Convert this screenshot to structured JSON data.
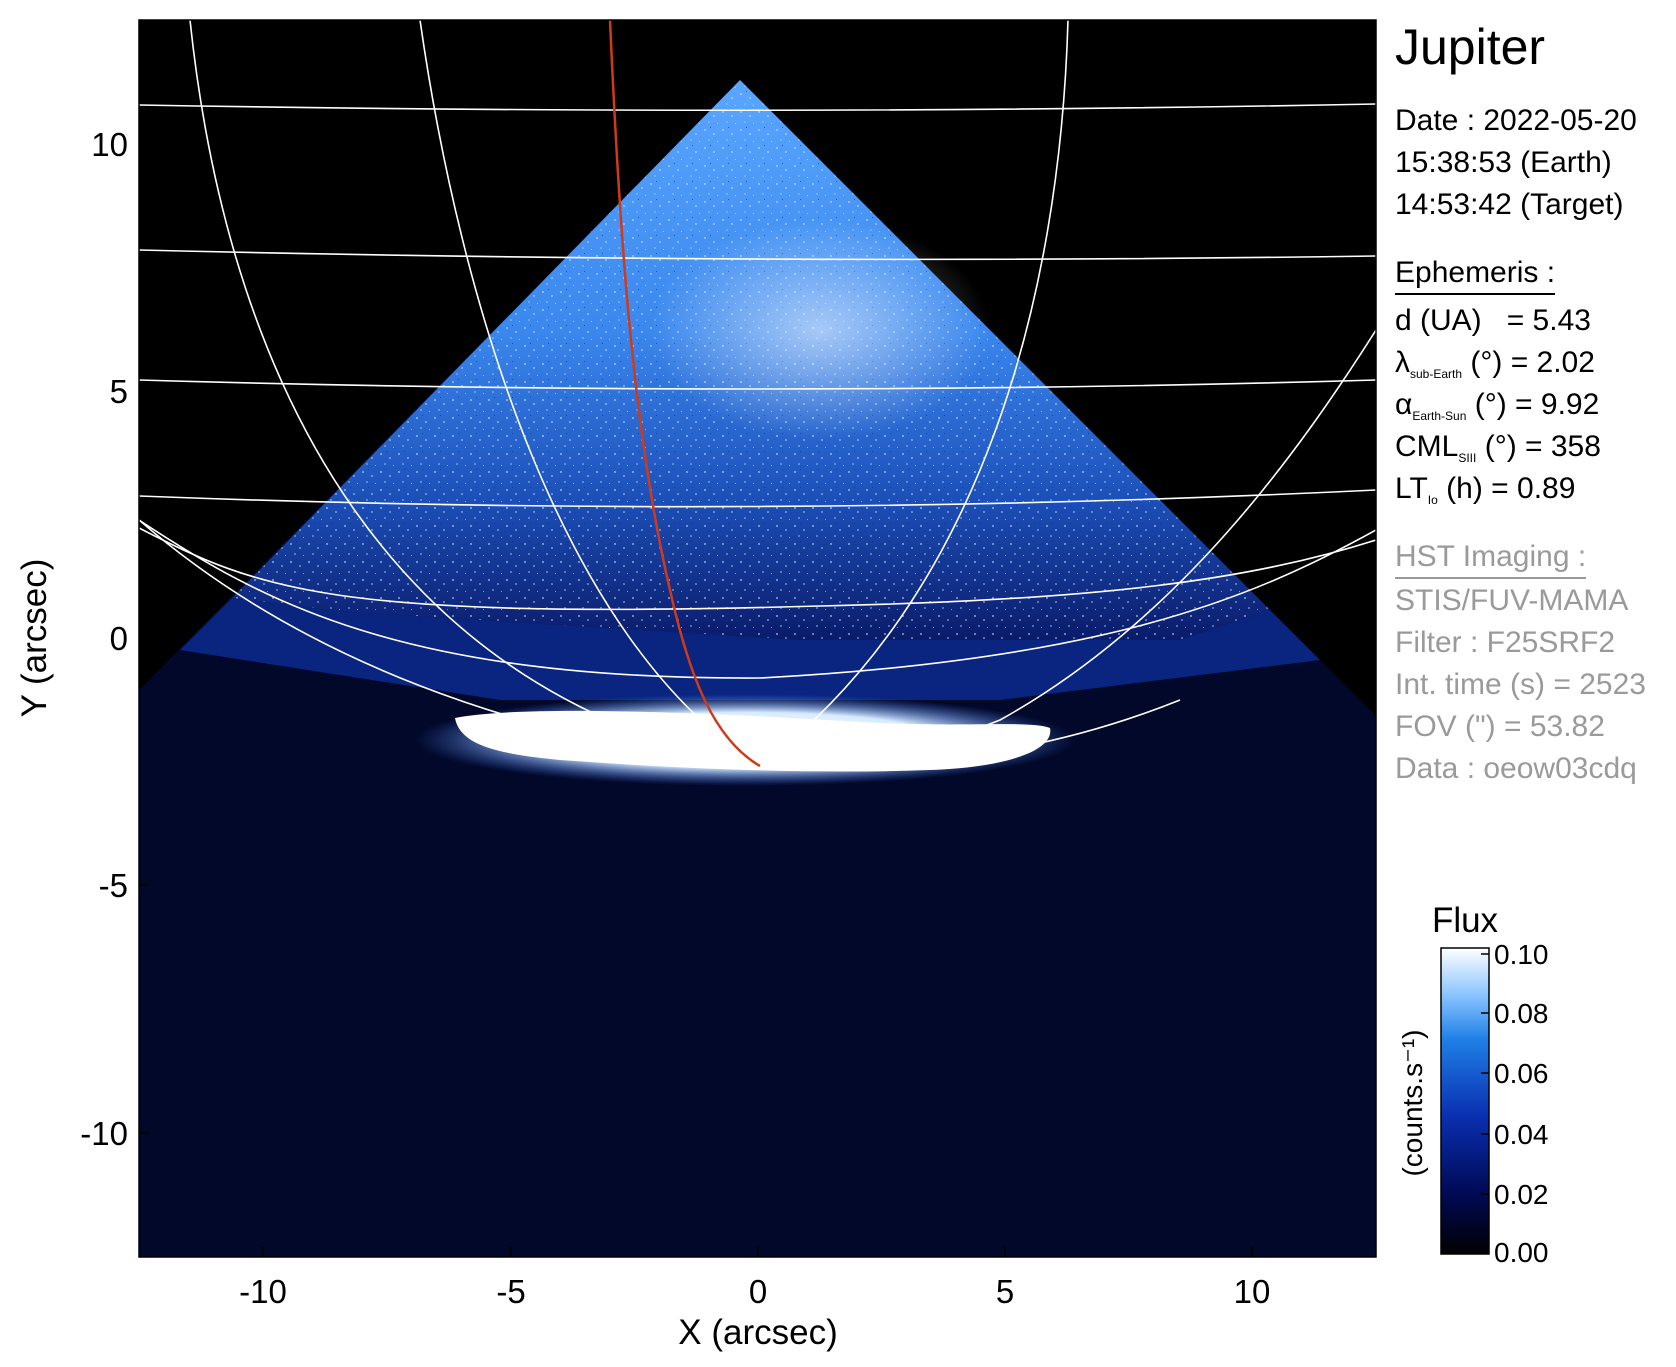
{
  "target_name": "Jupiter",
  "observation": {
    "date_line": "Date : 2022-05-20",
    "earth_time_line": "15:38:53 (Earth)",
    "target_time_line": "14:53:42 (Target)"
  },
  "ephemeris": {
    "heading": "Ephemeris :",
    "d_label": "d (UA)",
    "d_value": "= 5.43",
    "lambda_symbol": "λ",
    "lambda_sub": "sub-Earth",
    "lambda_rest": "(°) = 2.02",
    "alpha_symbol": "α",
    "alpha_sub": "Earth-Sun",
    "alpha_rest": "(°) = 9.92",
    "cml_symbol": "CML",
    "cml_sub": "SIII",
    "cml_rest": "(°) = 358",
    "lt_symbol": "LT",
    "lt_sub": "Io",
    "lt_rest": "(h) = 0.89"
  },
  "imaging": {
    "heading": "HST Imaging :",
    "instrument": "STIS/FUV-MAMA",
    "filter": "Filter : F25SRF2",
    "int_time": "Int. time (s) = 2523",
    "fov": "FOV (\") = 53.82",
    "data": "Data : oeow03cdq"
  },
  "axes": {
    "x_label": "X (arcsec)",
    "y_label": "Y (arcsec)",
    "x_ticks": [
      "-10",
      "-5",
      "0",
      "5",
      "10"
    ],
    "y_ticks": [
      "10",
      "5",
      "0",
      "-5",
      "-10"
    ],
    "x_tick_values": [
      -10,
      -5,
      0,
      5,
      10
    ],
    "y_tick_values": [
      10,
      5,
      0,
      -5,
      -10
    ],
    "range": [
      -12.5,
      12.5
    ]
  },
  "colorbar": {
    "title": "Flux",
    "unit_label": "(counts.s⁻¹)",
    "ticks": [
      "0.10",
      "0.08",
      "0.06",
      "0.04",
      "0.02",
      "0.00"
    ],
    "tick_values": [
      0.1,
      0.08,
      0.06,
      0.04,
      0.02,
      0.0
    ],
    "range": [
      0.0,
      0.1
    ]
  },
  "colors": {
    "background": "#000000",
    "detector_dark": "#02082a",
    "disk_blue": "#2f7ee8",
    "aurora": "#ffffff",
    "grid": "#ffffff",
    "io_footpath": "#d03a18"
  }
}
